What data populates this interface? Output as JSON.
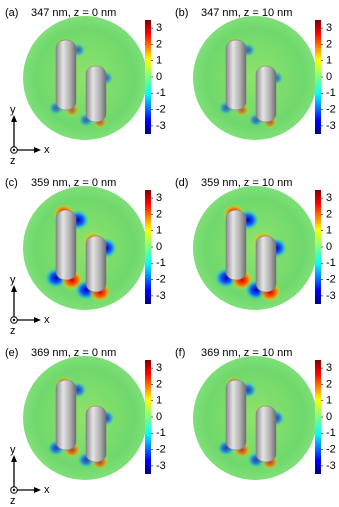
{
  "panels": [
    {
      "label": "(a)",
      "title": "347 nm, z = 0 nm",
      "colorbar": {
        "ticks": [
          3,
          2,
          1,
          0,
          -1,
          -2,
          -3
        ],
        "lim": [
          -3.5,
          3.5
        ]
      }
    },
    {
      "label": "(b)",
      "title": "347 nm, z = 10 nm",
      "colorbar": {
        "ticks": [
          3,
          2,
          1,
          0,
          -1,
          -2,
          -3
        ],
        "lim": [
          -3.5,
          3.5
        ]
      }
    },
    {
      "label": "(c)",
      "title": "359 nm, z = 0 nm",
      "colorbar": {
        "ticks": [
          3,
          2,
          1,
          0,
          -1,
          -2,
          -3
        ],
        "lim": [
          -3.5,
          3.5
        ]
      }
    },
    {
      "label": "(d)",
      "title": "359 nm, z = 10 nm",
      "colorbar": {
        "ticks": [
          3,
          2,
          1,
          0,
          -1,
          -2,
          -3
        ],
        "lim": [
          -3.5,
          3.5
        ]
      }
    },
    {
      "label": "(e)",
      "title": "369 nm, z = 0 nm",
      "colorbar": {
        "ticks": [
          3,
          2,
          1,
          0,
          -1,
          -2,
          -3
        ],
        "lim": [
          -3.5,
          3.5
        ]
      }
    },
    {
      "label": "(f)",
      "title": "369 nm, z = 10 nm",
      "colorbar": {
        "ticks": [
          3,
          2,
          1,
          0,
          -1,
          -2,
          -3
        ],
        "lim": [
          -3.5,
          3.5
        ]
      }
    }
  ],
  "axes": {
    "x": "x",
    "y": "y",
    "z": "z"
  }
}
